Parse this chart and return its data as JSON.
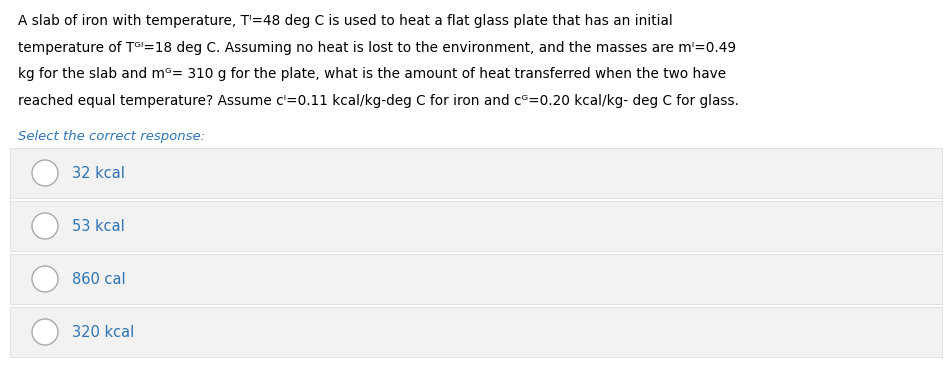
{
  "background_color": "#ffffff",
  "question_lines": [
    "A slab of iron with temperature, Ti=48 deg C is used to heat a flat glass plate that has an initial",
    "temperature of Tgi=18 deg C. Assuming no heat is lost to the environment, and the masses are mi=0.49",
    "kg for the slab and mg= 310 g for the plate, what is the amount of heat transferred when the two have",
    "reached equal temperature? Assume ci=0.11 kcal/kg-deg C for iron and cg=0.20 kcal/kg- deg C for glass."
  ],
  "select_text": "Select the correct response:",
  "options": [
    "32 kcal",
    "53 kcal",
    "860 cal",
    "320 kcal"
  ],
  "option_bg_color": "#f2f2f2",
  "option_text_color": "#2e74b5",
  "question_text_color": "#000000",
  "select_text_color": "#2e74b5",
  "circle_edge_color": "#aaaaaa",
  "circle_face_color": "#ffffff",
  "separator_color": "#dddddd",
  "font_size_question": 9.8,
  "font_size_select": 9.5,
  "font_size_option": 10.5,
  "fig_width": 9.52,
  "fig_height": 3.74,
  "dpi": 100
}
